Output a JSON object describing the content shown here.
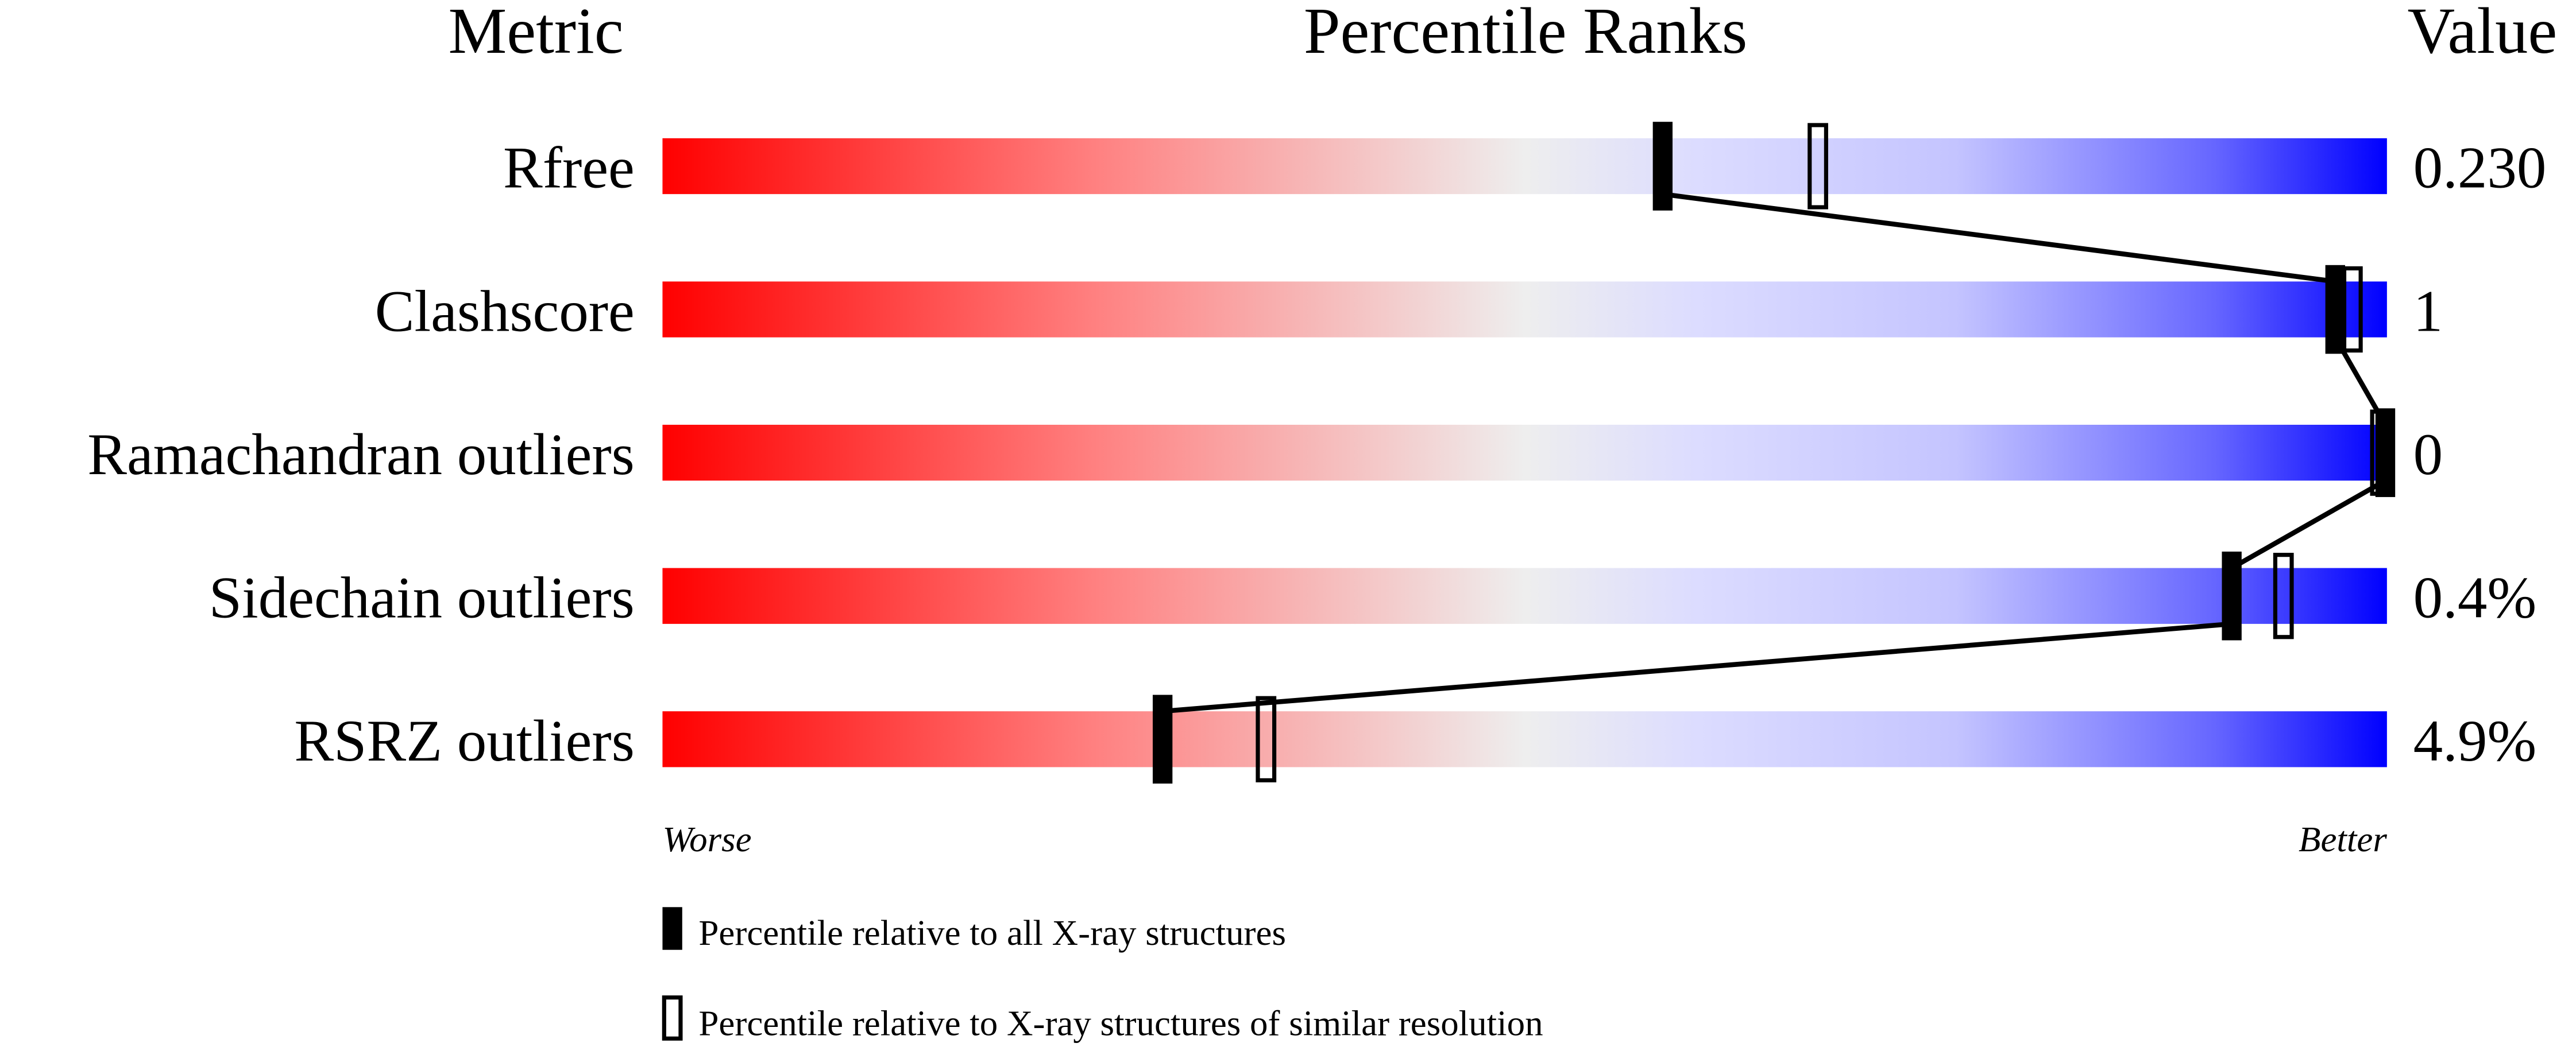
{
  "chart_data": {
    "type": "percentile-slider",
    "headers": {
      "metric": "Metric",
      "title": "Percentile Ranks",
      "value": "Value"
    },
    "xlim": [
      0,
      100
    ],
    "axis_labels": {
      "left": "Worse",
      "right": "Better"
    },
    "gradient_colors": {
      "worse": "#ff0000",
      "middle": "#eeeeee",
      "better": "#0000ff"
    },
    "metrics": [
      {
        "name": "Rfree",
        "value": "0.230",
        "percentile_all": 58,
        "percentile_similar": 67
      },
      {
        "name": "Clashscore",
        "value": "1",
        "percentile_all": 97,
        "percentile_similar": 98
      },
      {
        "name": "Ramachandran outliers",
        "value": "0",
        "percentile_all": 100,
        "percentile_similar": 100
      },
      {
        "name": "Sidechain outliers",
        "value": "0.4%",
        "percentile_all": 91,
        "percentile_similar": 94
      },
      {
        "name": "RSRZ outliers",
        "value": "4.9%",
        "percentile_all": 29,
        "percentile_similar": 35
      }
    ],
    "legend": [
      {
        "marker": "filled",
        "label": "Percentile relative to all X-ray structures"
      },
      {
        "marker": "open",
        "label": "Percentile relative to X-ray structures of similar resolution"
      }
    ]
  }
}
